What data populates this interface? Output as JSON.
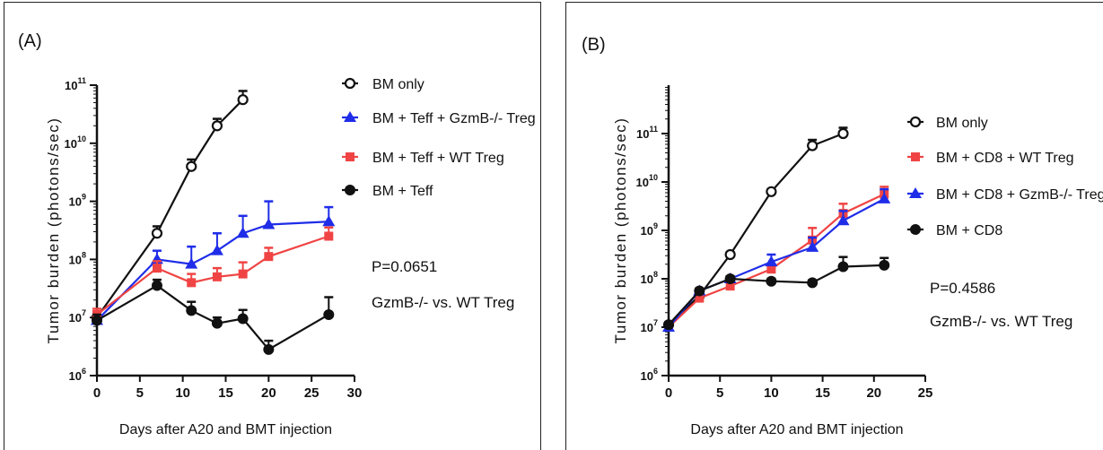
{
  "panels": [
    {
      "panel_label": "(A)",
      "stat": "P=0.0651",
      "stat_note": "GzmB-/- vs. WT Treg"
    },
    {
      "panel_label": "(B)",
      "stat": "P=0.4586",
      "stat_note": "GzmB-/- vs. WT Treg"
    }
  ],
  "chart_data": [
    {
      "type": "line",
      "title": "(A)",
      "xlabel": "Days after A20 and BMT injection",
      "ylabel": "Tumor burden (photons/sec)",
      "xlim": [
        0,
        30
      ],
      "xticks": [
        0,
        5,
        10,
        15,
        20,
        25,
        30
      ],
      "ylim_log10": [
        6,
        11
      ],
      "yscale": "log",
      "ytick_labels": [
        "10^6",
        "10^7",
        "10^8",
        "10^9",
        "10^10",
        "10^11"
      ],
      "legend_position": "right",
      "series": [
        {
          "name": "BM only",
          "marker": "open-circle",
          "color": "#111111",
          "x": [
            0,
            7,
            11,
            14,
            17
          ],
          "log10_y": [
            7.0,
            8.45,
            9.6,
            10.3,
            10.75
          ],
          "err_log10": [
            0.1,
            0.12,
            0.12,
            0.12,
            0.15
          ]
        },
        {
          "name": "BM + Teff + GzmB-/- Treg",
          "marker": "triangle",
          "color": "#1f2de8",
          "x": [
            0,
            7,
            11,
            14,
            17,
            20,
            27
          ],
          "log10_y": [
            6.95,
            8.0,
            7.92,
            8.15,
            8.45,
            8.6,
            8.65
          ],
          "err_log10": [
            0.1,
            0.15,
            0.3,
            0.3,
            0.3,
            0.4,
            0.25
          ]
        },
        {
          "name": "BM + Teff + WT Treg",
          "marker": "square",
          "color": "#f04444",
          "x": [
            0,
            7,
            11,
            14,
            17,
            20,
            27
          ],
          "log10_y": [
            7.05,
            7.85,
            7.6,
            7.7,
            7.75,
            8.05,
            8.4
          ],
          "err_log10": [
            0.1,
            0.12,
            0.15,
            0.15,
            0.2,
            0.15,
            0.15
          ]
        },
        {
          "name": "BM + Teff",
          "marker": "filled-circle",
          "color": "#111111",
          "x": [
            0,
            7,
            11,
            14,
            17,
            20,
            27
          ],
          "log10_y": [
            6.95,
            7.55,
            7.12,
            6.9,
            6.98,
            6.45,
            7.05
          ],
          "err_log10": [
            0.1,
            0.1,
            0.15,
            0.1,
            0.15,
            0.15,
            0.3
          ]
        }
      ]
    },
    {
      "type": "line",
      "title": "(B)",
      "xlabel": "Days after A20 and BMT injection",
      "ylabel": "Tumor burden (photons/sec)",
      "xlim": [
        0,
        25
      ],
      "xticks": [
        0,
        5,
        10,
        15,
        20,
        25
      ],
      "ylim_log10": [
        6,
        12
      ],
      "yscale": "log",
      "ytick_labels": [
        "10^6",
        "10^7",
        "10^8",
        "10^9",
        "10^10",
        "10^11"
      ],
      "legend_position": "right",
      "series": [
        {
          "name": "BM only",
          "marker": "open-circle",
          "color": "#111111",
          "x": [
            0,
            3,
            6,
            10,
            14,
            17
          ],
          "log10_y": [
            7.05,
            7.65,
            8.5,
            9.8,
            10.75,
            11.0
          ],
          "err_log10": [
            0.05,
            0.05,
            0.05,
            0.05,
            0.12,
            0.12
          ]
        },
        {
          "name": "BM + CD8 + WT Treg",
          "marker": "square",
          "color": "#f04444",
          "x": [
            0,
            3,
            6,
            10,
            14,
            17,
            21
          ],
          "log10_y": [
            7.0,
            7.6,
            7.85,
            8.2,
            8.8,
            9.35,
            9.75
          ],
          "err_log10": [
            0.05,
            0.05,
            0.08,
            0.1,
            0.25,
            0.2,
            0.15
          ]
        },
        {
          "name": "BM + CD8 + GzmB-/- Treg",
          "marker": "triangle",
          "color": "#1f2de8",
          "x": [
            0,
            3,
            6,
            10,
            14,
            17,
            21
          ],
          "log10_y": [
            7.0,
            7.75,
            8.0,
            8.35,
            8.65,
            9.2,
            9.65
          ],
          "err_log10": [
            0.05,
            0.05,
            0.05,
            0.15,
            0.2,
            0.2,
            0.2
          ]
        },
        {
          "name": "BM + CD8",
          "marker": "filled-circle",
          "color": "#111111",
          "x": [
            0,
            3,
            6,
            10,
            14,
            17,
            21
          ],
          "log10_y": [
            7.05,
            7.75,
            8.0,
            7.95,
            7.92,
            8.25,
            8.28
          ],
          "err_log10": [
            0.05,
            0.05,
            0.05,
            0.05,
            0.05,
            0.2,
            0.15
          ]
        }
      ]
    }
  ]
}
